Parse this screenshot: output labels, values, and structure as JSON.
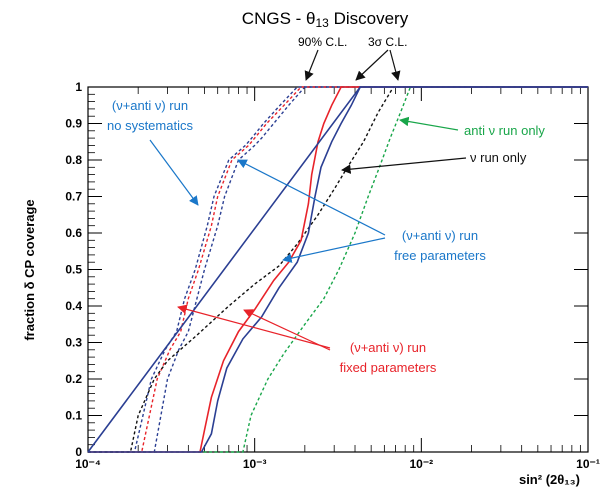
{
  "chart_data": {
    "type": "line",
    "title": "CNGS - θ₁₃ Discovery",
    "xlabel": "sin² (2θ₁₃)",
    "ylabel": "fraction δ CP coverage",
    "x_scale": "log",
    "xlim": [
      0.0001,
      0.1
    ],
    "ylim": [
      0,
      1
    ],
    "grid": false,
    "x_ticks": [
      "10⁻⁴",
      "10⁻³",
      "10⁻²",
      "10⁻¹"
    ],
    "y_ticks": [
      "0",
      "0.1",
      "0.2",
      "0.3",
      "0.4",
      "0.5",
      "0.6",
      "0.7",
      "0.8",
      "0.9",
      "1"
    ],
    "colors": {
      "blue": "#2b3f93",
      "red": "#e8232a",
      "black": "#111111",
      "green": "#19a64a",
      "annot_blue": "#1a77c9"
    },
    "series": [
      {
        "color": "blue",
        "style": "dashed",
        "x": [
          0.00025,
          0.0003,
          0.00035,
          0.0004,
          0.00045,
          0.0005,
          0.0006,
          0.00066,
          0.0008,
          0.001,
          0.0011,
          0.0013,
          0.0016,
          0.002
        ],
        "y": [
          0,
          0.2,
          0.28,
          0.33,
          0.42,
          0.5,
          0.62,
          0.7,
          0.8,
          0.84,
          0.86,
          0.9,
          0.95,
          1
        ]
      },
      {
        "color": "red",
        "style": "dashed",
        "x": [
          0.00021,
          0.00026,
          0.00031,
          0.00036,
          0.0004,
          0.00046,
          0.00055,
          0.0006,
          0.00073,
          0.00092,
          0.001,
          0.00118,
          0.0015,
          0.0019
        ],
        "y": [
          0,
          0.2,
          0.28,
          0.33,
          0.42,
          0.5,
          0.62,
          0.7,
          0.8,
          0.84,
          0.86,
          0.9,
          0.95,
          1
        ]
      },
      {
        "color": "blue",
        "style": "dashed",
        "x": [
          0.00019,
          0.00024,
          0.00029,
          0.00034,
          0.00038,
          0.00044,
          0.00052,
          0.00057,
          0.0007,
          0.00088,
          0.00096,
          0.00113,
          0.00142,
          0.0018
        ],
        "y": [
          0,
          0.2,
          0.28,
          0.33,
          0.42,
          0.5,
          0.62,
          0.7,
          0.8,
          0.84,
          0.86,
          0.9,
          0.95,
          1
        ]
      },
      {
        "color": "black",
        "style": "dashed",
        "x": [
          0.00018,
          0.0002,
          0.00025,
          0.0003,
          0.00045,
          0.0007,
          0.001,
          0.0014,
          0.0018,
          0.0024,
          0.003,
          0.0036,
          0.0045,
          0.0055,
          0.0068
        ],
        "y": [
          0,
          0.1,
          0.2,
          0.25,
          0.32,
          0.4,
          0.46,
          0.51,
          0.57,
          0.65,
          0.72,
          0.78,
          0.85,
          0.93,
          1
        ]
      },
      {
        "color": "green",
        "style": "dashed",
        "x": [
          0.00085,
          0.00095,
          0.0012,
          0.0015,
          0.002,
          0.0026,
          0.0032,
          0.004,
          0.0048,
          0.0056,
          0.0065,
          0.0075,
          0.0086
        ],
        "y": [
          0,
          0.1,
          0.2,
          0.27,
          0.35,
          0.42,
          0.5,
          0.6,
          0.7,
          0.78,
          0.86,
          0.93,
          1
        ]
      },
      {
        "color": "red",
        "style": "solid",
        "x": [
          0.00047,
          0.0005,
          0.00055,
          0.00065,
          0.0008,
          0.001,
          0.0013,
          0.0016,
          0.0019,
          0.0021,
          0.0022,
          0.0024,
          0.0026,
          0.0029,
          0.0033
        ],
        "y": [
          0,
          0.06,
          0.15,
          0.25,
          0.33,
          0.39,
          0.47,
          0.52,
          0.58,
          0.68,
          0.76,
          0.85,
          0.9,
          0.95,
          1
        ]
      },
      {
        "color": "blue",
        "style": "solid",
        "x": [
          0.00048,
          0.00055,
          0.0006,
          0.00068,
          0.00085,
          0.0011,
          0.0014,
          0.0018,
          0.0021,
          0.0023,
          0.0025,
          0.0029,
          0.0033,
          0.0038,
          0.0043
        ],
        "y": [
          0,
          0.05,
          0.14,
          0.23,
          0.31,
          0.37,
          0.45,
          0.52,
          0.6,
          0.7,
          0.78,
          0.85,
          0.9,
          0.95,
          1
        ]
      },
      {
        "color": "blue",
        "style": "solid",
        "x": [
          0.0043,
          0.1
        ],
        "y": [
          1,
          1
        ]
      }
    ],
    "annotations": [
      {
        "text": "(ν+anti ν) run",
        "color": "annot_blue",
        "x": 0.00018,
        "y": 0.93
      },
      {
        "text": "no systematics",
        "color": "annot_blue",
        "x": 0.00018,
        "y": 0.87
      },
      {
        "text": "anti ν run only",
        "color": "green",
        "x": 0.022,
        "y": 0.87
      },
      {
        "text": "ν run only",
        "color": "black",
        "x": 0.025,
        "y": 0.78
      },
      {
        "text": "(ν+anti ν) run",
        "color": "annot_blue",
        "x": 0.016,
        "y": 0.59
      },
      {
        "text": "free parameters",
        "color": "annot_blue",
        "x": 0.016,
        "y": 0.53
      },
      {
        "text": "(ν+anti ν) run",
        "color": "red",
        "x": 0.012,
        "y": 0.3
      },
      {
        "text": "fixed parameters",
        "color": "red",
        "x": 0.012,
        "y": 0.24
      },
      {
        "text": "90% C.L.",
        "color": "black",
        "x": 0.0018,
        "y": 1.11
      },
      {
        "text": "3σ C.L.",
        "color": "black",
        "x": 0.0065,
        "y": 1.11
      }
    ]
  }
}
